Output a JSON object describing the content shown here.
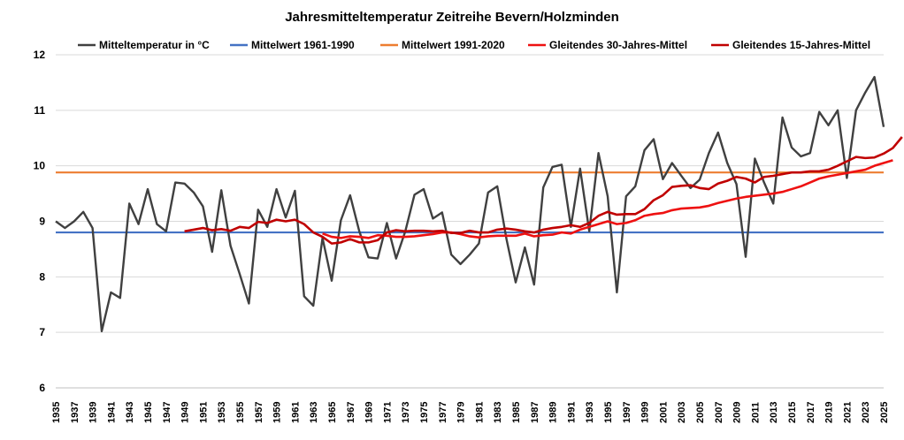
{
  "chart_data": {
    "type": "line",
    "title": "Jahresmitteltemperatur Zeitreihe Bevern/Holzminden",
    "xlabel": "",
    "ylabel": "",
    "ylim": [
      6,
      12
    ],
    "yticks": [
      6,
      7,
      8,
      9,
      10,
      11,
      12
    ],
    "grid": "horizontal",
    "legend_position": "top",
    "x_start": 1935,
    "x_end": 2025,
    "xtick_labels": [
      "1935",
      "1937",
      "1939",
      "1941",
      "1943",
      "1945",
      "1947",
      "1949",
      "1951",
      "1953",
      "1955",
      "1957",
      "1959",
      "1961",
      "1963",
      "1965",
      "1967",
      "1969",
      "1971",
      "1973",
      "1975",
      "1977",
      "1979",
      "1981",
      "1983",
      "1985",
      "1987",
      "1989",
      "1991",
      "1993",
      "1995",
      "1997",
      "1999",
      "2001",
      "2003",
      "2005",
      "2007",
      "2009",
      "2011",
      "2013",
      "2015",
      "2017",
      "2019",
      "2021",
      "2023",
      "2025"
    ],
    "series": [
      {
        "name": "Mitteltemperatur in °C",
        "color": "#404040",
        "start_year": 1935,
        "values": [
          9.0,
          8.88,
          9.0,
          9.17,
          8.88,
          7.02,
          7.72,
          7.62,
          9.32,
          8.95,
          9.58,
          8.95,
          8.82,
          9.7,
          9.68,
          9.52,
          9.27,
          8.45,
          9.56,
          8.56,
          8.05,
          7.52,
          9.21,
          8.9,
          9.58,
          9.07,
          9.55,
          7.65,
          7.48,
          8.7,
          7.93,
          9.02,
          9.47,
          8.82,
          8.35,
          8.33,
          8.97,
          8.33,
          8.82,
          9.48,
          9.58,
          9.05,
          9.16,
          8.4,
          8.23,
          8.4,
          8.6,
          9.52,
          9.63,
          8.68,
          7.9,
          8.53,
          7.86,
          9.61,
          9.98,
          10.02,
          8.9,
          9.95,
          8.82,
          10.23,
          9.45,
          7.72,
          9.45,
          9.63,
          10.28,
          10.48,
          9.76,
          10.05,
          9.82,
          9.6,
          9.75,
          10.23,
          10.6,
          10.05,
          9.67,
          8.36,
          10.13,
          9.7,
          9.32,
          10.87,
          10.33,
          10.17,
          10.23,
          10.97,
          10.73,
          11.0,
          9.78,
          11.0,
          11.32,
          11.6,
          10.7
        ]
      },
      {
        "name": "Mittelwert 1961-1990",
        "color": "#4472c4",
        "constant": 8.8
      },
      {
        "name": "Mittelwert 1991-2020",
        "color": "#ed7d31",
        "constant": 9.88
      },
      {
        "name": "Gleitendes 30-Jahres-Mittel",
        "color": "#ee1111",
        "start_year": 1964,
        "values": [
          8.78,
          8.72,
          8.7,
          8.73,
          8.72,
          8.7,
          8.75,
          8.74,
          8.72,
          8.72,
          8.73,
          8.75,
          8.77,
          8.8,
          8.8,
          8.77,
          8.73,
          8.71,
          8.73,
          8.74,
          8.74,
          8.74,
          8.78,
          8.73,
          8.75,
          8.76,
          8.8,
          8.78,
          8.85,
          8.9,
          8.95,
          9.0,
          8.95,
          8.97,
          9.02,
          9.1,
          9.13,
          9.15,
          9.2,
          9.23,
          9.24,
          9.25,
          9.28,
          9.33,
          9.37,
          9.41,
          9.44,
          9.46,
          9.48,
          9.5,
          9.53,
          9.58,
          9.63,
          9.7,
          9.77,
          9.81,
          9.84,
          9.87,
          9.9,
          9.93,
          10.0,
          10.05,
          10.1
        ]
      },
      {
        "name": "Gleitendes 15-Jahres-Mittel",
        "color": "#c00000",
        "start_year": 1949,
        "values": [
          8.82,
          8.85,
          8.88,
          8.84,
          8.86,
          8.83,
          8.9,
          8.88,
          8.99,
          8.97,
          9.03,
          9.0,
          9.03,
          8.95,
          8.8,
          8.72,
          8.6,
          8.62,
          8.68,
          8.62,
          8.62,
          8.66,
          8.8,
          8.84,
          8.82,
          8.83,
          8.83,
          8.82,
          8.83,
          8.79,
          8.79,
          8.83,
          8.8,
          8.8,
          8.85,
          8.87,
          8.85,
          8.82,
          8.8,
          8.85,
          8.88,
          8.9,
          8.93,
          8.9,
          8.97,
          9.1,
          9.17,
          9.12,
          9.13,
          9.13,
          9.22,
          9.38,
          9.47,
          9.62,
          9.64,
          9.65,
          9.6,
          9.58,
          9.68,
          9.73,
          9.8,
          9.77,
          9.7,
          9.8,
          9.82,
          9.85,
          9.88,
          9.88,
          9.9,
          9.9,
          9.93,
          10.0,
          10.08,
          10.16,
          10.14,
          10.15,
          10.22,
          10.32,
          10.52
        ]
      }
    ]
  }
}
